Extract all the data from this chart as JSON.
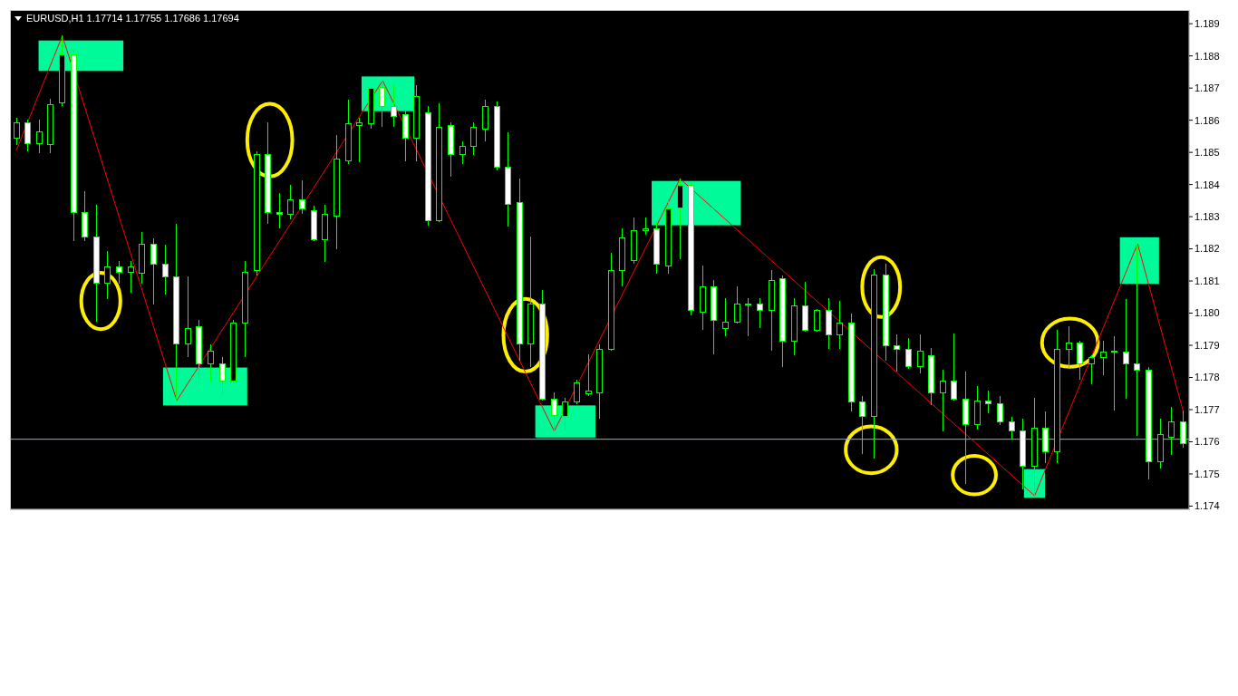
{
  "chart_data": {
    "type": "candlestick",
    "title": "EURUSD,H1 1.17714 1.17755 1.17686 1.17694",
    "color": "#00ff00",
    "categories": [
      null,
      null,
      null,
      null,
      null,
      null,
      null,
      null,
      null,
      null,
      null,
      null,
      null,
      null,
      null,
      null,
      null,
      null,
      null,
      null,
      null,
      null,
      null,
      null,
      null,
      null,
      null,
      null,
      null,
      null,
      null,
      null,
      null,
      null,
      null,
      null,
      null,
      null,
      null,
      null,
      null,
      null,
      null,
      null,
      null,
      null,
      null,
      null,
      null,
      null,
      null,
      null,
      null,
      null,
      null,
      null,
      null,
      null,
      null,
      null,
      null,
      null,
      null,
      null,
      null,
      null,
      null,
      null,
      null,
      null,
      null,
      null,
      null,
      null,
      null,
      null,
      null,
      null,
      null,
      null,
      null,
      null,
      null,
      null,
      null,
      null,
      null,
      null,
      null,
      null,
      null,
      null,
      null,
      null,
      null,
      null,
      null,
      null,
      null,
      null,
      null,
      null,
      null
    ],
    "ohlc": [
      [
        1.18543,
        1.18608,
        1.18523,
        1.18593
      ],
      [
        1.18593,
        1.18603,
        1.18503,
        1.18528
      ],
      [
        1.18528,
        1.18603,
        1.18498,
        1.18563
      ],
      [
        1.18523,
        1.18668,
        1.18498,
        1.18648
      ],
      [
        1.18653,
        1.18863,
        1.18643,
        1.18803
      ],
      [
        1.18803,
        1.18823,
        1.18223,
        1.18313
      ],
      [
        1.18313,
        1.18378,
        1.18223,
        1.18238
      ],
      [
        1.18238,
        1.18338,
        1.17973,
        1.18093
      ],
      [
        1.18093,
        1.18193,
        1.18043,
        1.18143
      ],
      [
        1.18143,
        1.18163,
        1.18093,
        1.18128
      ],
      [
        1.18128,
        1.18163,
        1.18063,
        1.18143
      ],
      [
        1.18123,
        1.18253,
        1.18093,
        1.18213
      ],
      [
        1.18213,
        1.18233,
        1.18028,
        1.18153
      ],
      [
        1.18153,
        1.18213,
        1.18058,
        1.18113
      ],
      [
        1.18113,
        1.18278,
        1.17728,
        1.17903
      ],
      [
        1.17903,
        1.18113,
        1.17863,
        1.17953
      ],
      [
        1.17958,
        1.17978,
        1.17783,
        1.17843
      ],
      [
        1.17843,
        1.17903,
        1.17788,
        1.17883
      ],
      [
        1.17843,
        1.17863,
        1.17748,
        1.17788
      ],
      [
        1.17788,
        1.17978,
        1.17783,
        1.17968
      ],
      [
        1.17968,
        1.18163,
        1.17863,
        1.18128
      ],
      [
        1.18133,
        1.18503,
        1.18118,
        1.18493
      ],
      [
        1.18493,
        1.18593,
        1.18278,
        1.18313
      ],
      [
        1.18313,
        1.18373,
        1.18263,
        1.18308
      ],
      [
        1.18308,
        1.18398,
        1.18293,
        1.18353
      ],
      [
        1.18353,
        1.18413,
        1.18308,
        1.18323
      ],
      [
        1.18318,
        1.18333,
        1.18223,
        1.18228
      ],
      [
        1.18228,
        1.18338,
        1.18158,
        1.18308
      ],
      [
        1.18303,
        1.18553,
        1.18198,
        1.18478
      ],
      [
        1.18473,
        1.18663,
        1.18463,
        1.18588
      ],
      [
        1.18583,
        1.18608,
        1.18468,
        1.18593
      ],
      [
        1.18588,
        1.18703,
        1.18573,
        1.18698
      ],
      [
        1.18703,
        1.18723,
        1.18578,
        1.18643
      ],
      [
        1.18643,
        1.18713,
        1.18578,
        1.18613
      ],
      [
        1.18618,
        1.18633,
        1.18473,
        1.18543
      ],
      [
        1.18543,
        1.18708,
        1.18473,
        1.18673
      ],
      [
        1.18623,
        1.18643,
        1.18273,
        1.18288
      ],
      [
        1.18288,
        1.18653,
        1.18283,
        1.18578
      ],
      [
        1.18583,
        1.18593,
        1.18423,
        1.18493
      ],
      [
        1.18493,
        1.18533,
        1.18463,
        1.18518
      ],
      [
        1.18518,
        1.18593,
        1.18493,
        1.18578
      ],
      [
        1.18573,
        1.18663,
        1.18533,
        1.18643
      ],
      [
        1.18643,
        1.18658,
        1.18443,
        1.18453
      ],
      [
        1.18453,
        1.18563,
        1.18268,
        1.18338
      ],
      [
        1.18343,
        1.18418,
        1.17853,
        1.17903
      ],
      [
        1.17903,
        1.18238,
        1.17833,
        1.18028
      ],
      [
        1.18028,
        1.18073,
        1.17728,
        1.17733
      ],
      [
        1.17733,
        1.17753,
        1.17633,
        1.17683
      ],
      [
        1.17678,
        1.17738,
        1.17638,
        1.17723
      ],
      [
        1.17723,
        1.17793,
        1.17718,
        1.17783
      ],
      [
        1.17748,
        1.17873,
        1.17743,
        1.17758
      ],
      [
        1.17753,
        1.17903,
        1.17673,
        1.17888
      ],
      [
        1.17888,
        1.18188,
        1.17883,
        1.18133
      ],
      [
        1.18133,
        1.18263,
        1.18083,
        1.18233
      ],
      [
        1.18163,
        1.18298,
        1.18153,
        1.18258
      ],
      [
        1.18258,
        1.18298,
        1.18243,
        1.18263
      ],
      [
        1.18263,
        1.18283,
        1.18123,
        1.18153
      ],
      [
        1.18148,
        1.18353,
        1.18123,
        1.18323
      ],
      [
        1.18328,
        1.18418,
        1.18168,
        1.18398
      ],
      [
        1.18398,
        1.18408,
        1.17993,
        1.18008
      ],
      [
        1.18003,
        1.18148,
        1.17948,
        1.18083
      ],
      [
        1.18083,
        1.18103,
        1.17873,
        1.17978
      ],
      [
        1.17953,
        1.18048,
        1.17928,
        1.17973
      ],
      [
        1.17973,
        1.18083,
        1.17968,
        1.18028
      ],
      [
        1.18028,
        1.18048,
        1.17928,
        1.18028
      ],
      [
        1.18028,
        1.18048,
        1.17953,
        1.18008
      ],
      [
        1.18008,
        1.18133,
        1.17883,
        1.18103
      ],
      [
        1.18108,
        1.18118,
        1.17833,
        1.17913
      ],
      [
        1.17913,
        1.18048,
        1.17868,
        1.18023
      ],
      [
        1.18023,
        1.18098,
        1.17943,
        1.17948
      ],
      [
        1.17948,
        1.18013,
        1.17943,
        1.18008
      ],
      [
        1.18008,
        1.18048,
        1.17888,
        1.17933
      ],
      [
        1.17933,
        1.18038,
        1.17888,
        1.17968
      ],
      [
        1.17968,
        1.17998,
        1.17693,
        1.17723
      ],
      [
        1.17723,
        1.17743,
        1.17563,
        1.17678
      ],
      [
        1.17678,
        1.18138,
        1.17548,
        1.18118
      ],
      [
        1.18118,
        1.18153,
        1.17853,
        1.17898
      ],
      [
        1.17898,
        1.17933,
        1.17818,
        1.17888
      ],
      [
        1.17888,
        1.17923,
        1.17828,
        1.17833
      ],
      [
        1.17833,
        1.17933,
        1.17813,
        1.17883
      ],
      [
        1.17868,
        1.17893,
        1.17713,
        1.17753
      ],
      [
        1.17753,
        1.17823,
        1.17633,
        1.17788
      ],
      [
        1.17788,
        1.17938,
        1.17728,
        1.17733
      ],
      [
        1.17733,
        1.17818,
        1.17468,
        1.17653
      ],
      [
        1.17653,
        1.17773,
        1.17638,
        1.17728
      ],
      [
        1.17728,
        1.17758,
        1.17688,
        1.17718
      ],
      [
        1.17718,
        1.17743,
        1.17653,
        1.17663
      ],
      [
        1.17663,
        1.17678,
        1.17608,
        1.17633
      ],
      [
        1.17633,
        1.17673,
        1.17453,
        1.17523
      ],
      [
        1.17523,
        1.17738,
        1.17432,
        1.17643
      ],
      [
        1.17643,
        1.17693,
        1.17533,
        1.17568
      ],
      [
        1.17568,
        1.17948,
        1.17533,
        1.17888
      ],
      [
        1.17888,
        1.17958,
        1.17828,
        1.17908
      ],
      [
        1.17908,
        1.17913,
        1.17793,
        1.17843
      ],
      [
        1.17843,
        1.17868,
        1.17778,
        1.17863
      ],
      [
        1.17863,
        1.17913,
        1.17808,
        1.17878
      ],
      [
        1.17878,
        1.17928,
        1.17698,
        1.17883
      ],
      [
        1.17878,
        1.18043,
        1.17733,
        1.17843
      ],
      [
        1.17843,
        1.18216,
        1.17618,
        1.17823
      ],
      [
        1.17823,
        1.17833,
        1.17483,
        1.17538
      ],
      [
        1.17538,
        1.17673,
        1.17518,
        1.17623
      ],
      [
        1.17613,
        1.17708,
        1.17558,
        1.17663
      ],
      [
        1.17663,
        1.17698,
        1.17583,
        1.17593
      ]
    ],
    "series": [
      {
        "type": "line",
        "color": "#ff0000",
        "values": [
          1.18508,
          null,
          null,
          null,
          1.18863,
          null,
          null,
          null,
          null,
          null,
          null,
          null,
          null,
          null,
          1.17728,
          null,
          null,
          null,
          null,
          null,
          null,
          null,
          null,
          null,
          null,
          null,
          null,
          null,
          null,
          null,
          null,
          null,
          1.18723,
          null,
          null,
          null,
          null,
          null,
          null,
          null,
          null,
          null,
          null,
          null,
          null,
          null,
          null,
          1.17633,
          null,
          null,
          null,
          null,
          null,
          null,
          null,
          null,
          null,
          null,
          1.18418,
          null,
          null,
          null,
          null,
          null,
          null,
          null,
          null,
          null,
          null,
          null,
          null,
          null,
          null,
          null,
          null,
          null,
          null,
          null,
          null,
          null,
          null,
          null,
          null,
          null,
          null,
          null,
          null,
          null,
          null,
          1.17432,
          null,
          null,
          null,
          null,
          null,
          null,
          null,
          null,
          1.18216,
          null,
          null,
          null,
          1.17693
        ]
      }
    ],
    "ylim": [
      1.1739,
      1.1894
    ],
    "yticks": [
      1.174,
      1.175,
      1.176,
      1.177,
      1.178,
      1.179,
      {
        "value": 1.18,
        "label": "1.180"
      },
      1.181,
      1.182,
      1.183,
      1.184,
      1.185,
      1.186,
      1.187,
      1.188,
      1.189
    ],
    "ref_lines": [
      {
        "axis": "y",
        "value": 1.17608,
        "color": "#a0a8b0"
      }
    ]
  }
}
